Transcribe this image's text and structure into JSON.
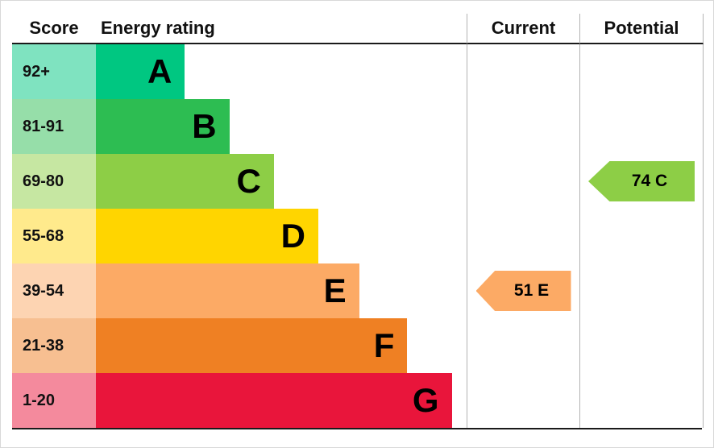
{
  "header": {
    "score": "Score",
    "energy_rating": "Energy rating",
    "current": "Current",
    "potential": "Potential"
  },
  "bands": [
    {
      "score": "92+",
      "letter": "A",
      "color": "#00c781",
      "tint": "#7fe3c0",
      "bar_width": "24%"
    },
    {
      "score": "81-91",
      "letter": "B",
      "color": "#2dbd52",
      "tint": "#96dea9",
      "bar_width": "36%"
    },
    {
      "score": "69-80",
      "letter": "C",
      "color": "#8dce46",
      "tint": "#c6e7a2",
      "bar_width": "48%"
    },
    {
      "score": "55-68",
      "letter": "D",
      "color": "#ffd500",
      "tint": "#ffea8c",
      "bar_width": "60%"
    },
    {
      "score": "39-54",
      "letter": "E",
      "color": "#fcaa65",
      "tint": "#fdd4b2",
      "bar_width": "71%"
    },
    {
      "score": "21-38",
      "letter": "F",
      "color": "#ef8023",
      "tint": "#f7bf91",
      "bar_width": "84%"
    },
    {
      "score": "1-20",
      "letter": "G",
      "color": "#e9153b",
      "tint": "#f48a9d",
      "bar_width": "96%"
    }
  ],
  "current": {
    "label": "51 E",
    "color": "#fcaa65"
  },
  "potential": {
    "label": "74 C",
    "color": "#8dce46"
  },
  "chart_data": {
    "type": "bar",
    "title": "Energy rating",
    "columns": [
      "Score",
      "Energy rating",
      "Current",
      "Potential"
    ],
    "categories": [
      "A",
      "B",
      "C",
      "D",
      "E",
      "F",
      "G"
    ],
    "score_ranges": [
      "92+",
      "81-91",
      "69-80",
      "55-68",
      "39-54",
      "21-38",
      "1-20"
    ],
    "values": [
      24,
      36,
      48,
      60,
      71,
      84,
      96
    ],
    "band_colors": [
      "#00c781",
      "#2dbd52",
      "#8dce46",
      "#ffd500",
      "#fcaa65",
      "#ef8023",
      "#e9153b"
    ],
    "score_tint_colors": [
      "#7fe3c0",
      "#96dea9",
      "#c6e7a2",
      "#ffea8c",
      "#fdd4b2",
      "#f7bf91",
      "#f48a9d"
    ],
    "current": {
      "score": 51,
      "band": "E"
    },
    "potential": {
      "score": 74,
      "band": "C"
    },
    "legend_position": "none",
    "grid": false
  }
}
